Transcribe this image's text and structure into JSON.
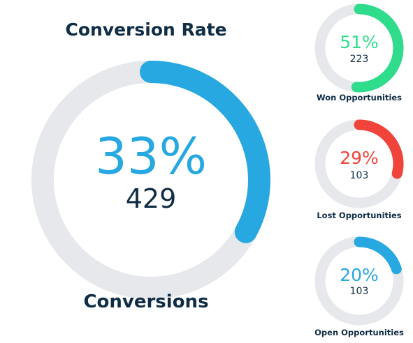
{
  "title": "Conversion Rate",
  "footer": "Conversions",
  "main": {
    "percent_label": "33%",
    "count_label": "429"
  },
  "won": {
    "percent_label": "51%",
    "count_label": "223",
    "label": "Won Opportunities"
  },
  "lost": {
    "percent_label": "29%",
    "count_label": "103",
    "label": "Lost Opportunities"
  },
  "open": {
    "percent_label": "20%",
    "count_label": "103",
    "label": "Open Opportunities"
  },
  "chart_data": [
    {
      "type": "pie",
      "title": "Conversion Rate",
      "subtitle": "Conversions",
      "values": [
        33
      ],
      "count": 429,
      "color": "#27a8e0",
      "track_color": "#e6e8ec"
    },
    {
      "type": "pie",
      "title": "Won Opportunities",
      "values": [
        51
      ],
      "count": 223,
      "color": "#2fdc8c",
      "track_color": "#e6e8ec"
    },
    {
      "type": "pie",
      "title": "Lost Opportunities",
      "values": [
        29
      ],
      "count": 103,
      "color": "#f0433a",
      "track_color": "#e6e8ec"
    },
    {
      "type": "pie",
      "title": "Open Opportunities",
      "values": [
        20
      ],
      "count": 103,
      "color": "#27a8e0",
      "track_color": "#e6e8ec"
    }
  ]
}
